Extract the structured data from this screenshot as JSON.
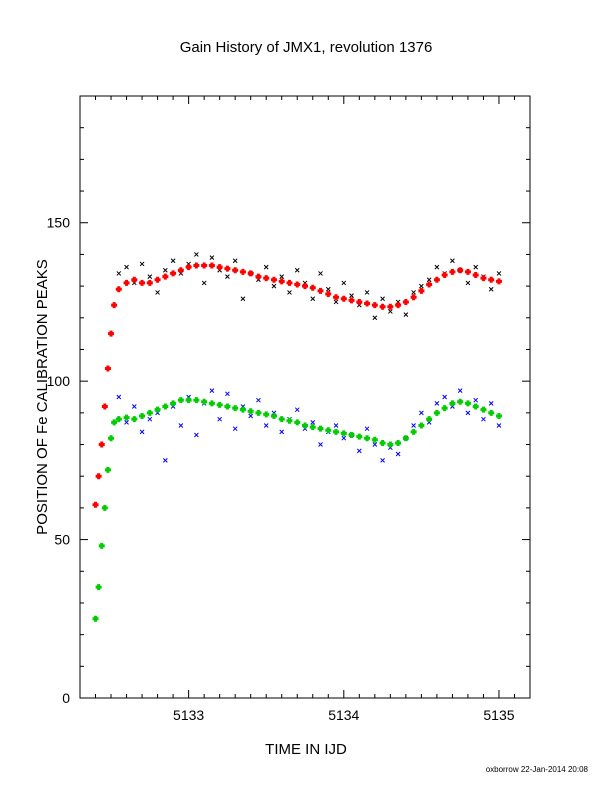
{
  "chart_data": {
    "type": "scatter",
    "title": "Gain History of JMX1, revolution 1376",
    "xlabel": "TIME IN IJD",
    "ylabel": "POSITION OF Fe CALIBRATION PEAKS",
    "xlim": [
      5132.3,
      5135.2
    ],
    "ylim": [
      0,
      190
    ],
    "x_ticks": [
      "5133",
      "5134",
      "5135"
    ],
    "x_tick_values": [
      5133,
      5134,
      5135
    ],
    "y_ticks": [
      "0",
      "50",
      "100",
      "150"
    ],
    "y_tick_values": [
      0,
      50,
      100,
      150
    ],
    "grid": false,
    "credit": "oxborrow 22-Jan-2014 20:08",
    "series": [
      {
        "role": "high-peak raw",
        "marker": "x",
        "color": "#000000",
        "x": [
          5132.55,
          5132.6,
          5132.65,
          5132.7,
          5132.75,
          5132.8,
          5132.85,
          5132.9,
          5132.95,
          5133.0,
          5133.05,
          5133.1,
          5133.15,
          5133.2,
          5133.25,
          5133.3,
          5133.35,
          5133.4,
          5133.45,
          5133.5,
          5133.55,
          5133.6,
          5133.65,
          5133.7,
          5133.75,
          5133.8,
          5133.85,
          5133.9,
          5133.95,
          5134.0,
          5134.05,
          5134.1,
          5134.15,
          5134.2,
          5134.25,
          5134.3,
          5134.35,
          5134.4,
          5134.45,
          5134.5,
          5134.55,
          5134.6,
          5134.65,
          5134.7,
          5134.75,
          5134.8,
          5134.85,
          5134.9,
          5134.95,
          5135.0
        ],
        "y": [
          134,
          136,
          131,
          137,
          133,
          128,
          135,
          138,
          134,
          137,
          140,
          131,
          139,
          135,
          133,
          138,
          126,
          134,
          132,
          136,
          130,
          133,
          128,
          135,
          131,
          126,
          134,
          129,
          125,
          131,
          127,
          124,
          128,
          120,
          126,
          122,
          125,
          121,
          128,
          130,
          132,
          136,
          134,
          138,
          135,
          131,
          136,
          133,
          129,
          134
        ]
      },
      {
        "role": "high-peak fit",
        "marker": "+",
        "color": "#ff0000",
        "x": [
          5132.4,
          5132.42,
          5132.44,
          5132.46,
          5132.48,
          5132.5,
          5132.52,
          5132.55,
          5132.6,
          5132.65,
          5132.7,
          5132.75,
          5132.8,
          5132.85,
          5132.9,
          5132.95,
          5133.0,
          5133.05,
          5133.1,
          5133.15,
          5133.2,
          5133.25,
          5133.3,
          5133.35,
          5133.4,
          5133.45,
          5133.5,
          5133.55,
          5133.6,
          5133.65,
          5133.7,
          5133.75,
          5133.8,
          5133.85,
          5133.9,
          5133.95,
          5134.0,
          5134.05,
          5134.1,
          5134.15,
          5134.2,
          5134.25,
          5134.3,
          5134.35,
          5134.4,
          5134.45,
          5134.5,
          5134.55,
          5134.6,
          5134.65,
          5134.7,
          5134.75,
          5134.8,
          5134.85,
          5134.9,
          5134.95,
          5135.0
        ],
        "y": [
          61,
          70,
          80,
          92,
          104,
          115,
          124,
          129,
          131,
          132,
          131,
          131,
          132,
          133,
          134,
          135,
          136,
          136.5,
          136.5,
          136.5,
          136,
          135.5,
          135,
          134.5,
          134,
          133,
          132.5,
          132,
          131.5,
          131,
          130.5,
          130,
          129.5,
          128.5,
          127.5,
          126.5,
          126,
          125.5,
          125,
          124.5,
          124,
          123.5,
          123.5,
          124,
          125,
          126.5,
          128.5,
          130.5,
          132,
          133.5,
          134.5,
          135,
          134.5,
          133.5,
          132.5,
          132,
          131.5
        ]
      },
      {
        "role": "low-peak raw",
        "marker": "x",
        "color": "#0000ff",
        "x": [
          5132.55,
          5132.6,
          5132.65,
          5132.7,
          5132.75,
          5132.8,
          5132.85,
          5132.9,
          5132.95,
          5133.0,
          5133.05,
          5133.1,
          5133.15,
          5133.2,
          5133.25,
          5133.3,
          5133.35,
          5133.4,
          5133.45,
          5133.5,
          5133.55,
          5133.6,
          5133.65,
          5133.7,
          5133.75,
          5133.8,
          5133.85,
          5133.9,
          5133.95,
          5134.0,
          5134.05,
          5134.1,
          5134.15,
          5134.2,
          5134.25,
          5134.3,
          5134.35,
          5134.4,
          5134.45,
          5134.5,
          5134.55,
          5134.6,
          5134.65,
          5134.7,
          5134.75,
          5134.8,
          5134.85,
          5134.9,
          5134.95,
          5135.0
        ],
        "y": [
          95,
          87,
          92,
          84,
          88,
          90,
          75,
          92,
          86,
          95,
          83,
          93,
          97,
          88,
          96,
          85,
          92,
          89,
          94,
          86,
          90,
          84,
          88,
          91,
          85,
          87,
          80,
          84,
          86,
          82,
          83,
          78,
          85,
          80,
          75,
          79,
          77,
          82,
          86,
          90,
          87,
          93,
          95,
          92,
          97,
          90,
          94,
          88,
          93,
          86
        ]
      },
      {
        "role": "low-peak fit",
        "marker": "+",
        "color": "#00cc00",
        "x": [
          5132.4,
          5132.42,
          5132.44,
          5132.46,
          5132.48,
          5132.5,
          5132.52,
          5132.55,
          5132.6,
          5132.65,
          5132.7,
          5132.75,
          5132.8,
          5132.85,
          5132.9,
          5132.95,
          5133.0,
          5133.05,
          5133.1,
          5133.15,
          5133.2,
          5133.25,
          5133.3,
          5133.35,
          5133.4,
          5133.45,
          5133.5,
          5133.55,
          5133.6,
          5133.65,
          5133.7,
          5133.75,
          5133.8,
          5133.85,
          5133.9,
          5133.95,
          5134.0,
          5134.05,
          5134.1,
          5134.15,
          5134.2,
          5134.25,
          5134.3,
          5134.35,
          5134.4,
          5134.45,
          5134.5,
          5134.55,
          5134.6,
          5134.65,
          5134.7,
          5134.75,
          5134.8,
          5134.85,
          5134.9,
          5134.95,
          5135.0
        ],
        "y": [
          25,
          35,
          48,
          60,
          72,
          82,
          87,
          88,
          88.5,
          88,
          89,
          90,
          91,
          92,
          93,
          94,
          94,
          94,
          93.5,
          93,
          92.5,
          92,
          91.5,
          91,
          90.5,
          90,
          89.5,
          89,
          88,
          87.5,
          87,
          86,
          85.5,
          85,
          84.5,
          84,
          83.5,
          83,
          82.5,
          82,
          81.5,
          80.5,
          80,
          80.5,
          82,
          84,
          86,
          88,
          90,
          91.5,
          93,
          93.5,
          93,
          92,
          91,
          90,
          89
        ]
      }
    ]
  }
}
